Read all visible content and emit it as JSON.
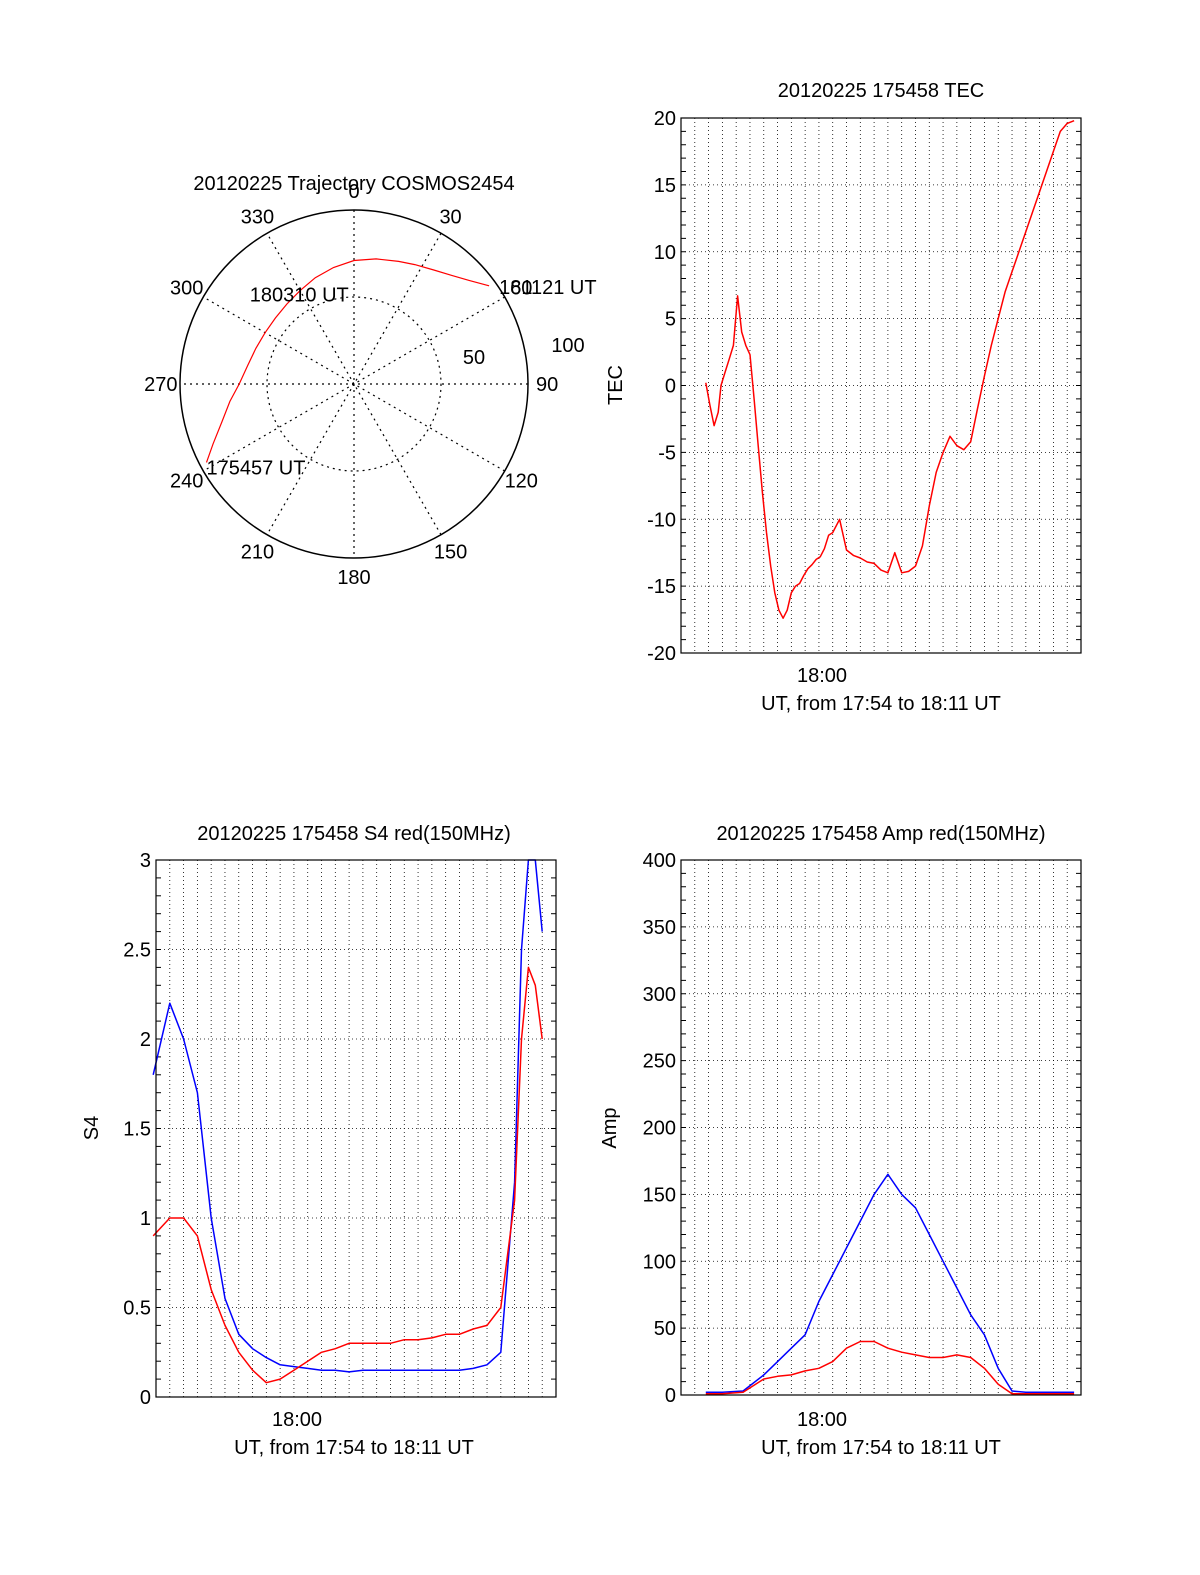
{
  "colors": {
    "red": "#ff0000",
    "blue": "#0000ff",
    "axis": "#000000"
  },
  "chart_data": [
    {
      "type": "polar",
      "title": "20120225 Trajectory COSMOS2454",
      "angle_labels": [
        "0",
        "30",
        "60",
        "90",
        "120",
        "150",
        "180",
        "210",
        "240",
        "270",
        "300",
        "330"
      ],
      "radius_labels": [
        "50",
        "100"
      ],
      "trajectory": {
        "azimuth_deg": [
          242,
          247,
          254,
          262,
          270,
          280,
          290,
          300,
          310,
          320,
          330,
          340,
          350,
          0,
          10,
          20,
          27,
          35,
          42,
          48,
          54
        ],
        "radius": [
          96,
          88,
          79,
          72,
          66,
          62,
          60,
          59,
          59,
          60,
          62,
          65,
          68,
          71,
          73,
          75,
          77,
          80,
          84,
          89,
          96
        ]
      },
      "annotations": [
        {
          "text": "181121 UT",
          "azimuth_deg": 54,
          "radius": 96
        },
        {
          "text": "180310 UT",
          "azimuth_deg": 330,
          "radius": 60
        },
        {
          "text": "175457 UT",
          "azimuth_deg": 242,
          "radius": 96
        }
      ]
    },
    {
      "type": "line",
      "title": "20120225 175458 TEC",
      "ylabel": "TEC",
      "xlabel": "UT, from 17:54 to 18:11 UT",
      "xtick_label": "18:00",
      "xlim_min": [
        17.9,
        18.19
      ],
      "ylim": [
        -20,
        20
      ],
      "yticks": [
        -20,
        -15,
        -10,
        -5,
        0,
        5,
        10,
        15,
        20
      ],
      "series": [
        {
          "color": "red",
          "x_min": [
            17.918,
            17.921,
            17.924,
            17.927,
            17.929,
            17.932,
            17.935,
            17.938,
            17.941,
            17.944,
            17.947,
            17.95,
            17.953,
            17.956,
            17.959,
            17.962,
            17.965,
            17.968,
            17.971,
            17.974,
            17.977,
            17.98,
            17.983,
            17.986,
            17.989,
            17.992,
            17.995,
            17.998,
            18.001,
            18.004,
            18.007,
            18.01,
            18.015,
            18.02,
            18.025,
            18.03,
            18.035,
            18.04,
            18.045,
            18.05,
            18.055,
            18.06,
            18.065,
            18.07,
            18.075,
            18.08,
            18.085,
            18.09,
            18.095,
            18.1,
            18.105,
            18.11,
            18.115,
            18.12,
            18.125,
            18.13,
            18.135,
            18.14,
            18.145,
            18.15,
            18.155,
            18.16,
            18.165,
            18.17,
            18.175,
            18.18,
            18.185
          ],
          "y": [
            0.2,
            -1.5,
            -3,
            -2,
            0,
            1,
            2,
            3,
            6.7,
            4,
            3,
            2.3,
            -1,
            -4.5,
            -8,
            -11,
            -13.5,
            -15.5,
            -16.8,
            -17.4,
            -16.8,
            -15.5,
            -15,
            -14.8,
            -14.2,
            -13.7,
            -13.4,
            -13,
            -12.8,
            -12.2,
            -11.2,
            -11,
            -10,
            -12.3,
            -12.7,
            -12.9,
            -13.2,
            -13.3,
            -13.8,
            -14,
            -12.5,
            -14,
            -13.9,
            -13.5,
            -12,
            -9,
            -6.5,
            -5,
            -3.8,
            -4.5,
            -4.8,
            -4.2,
            -1.7,
            0.7,
            3,
            5,
            7,
            8.5,
            10,
            11.5,
            13,
            14.5,
            16,
            17.5,
            19,
            19.6,
            19.8
          ]
        }
      ]
    },
    {
      "type": "line",
      "title": "20120225 175458 S4 red(150MHz)",
      "ylabel": "S4",
      "xlabel": "UT, from 17:54 to 18:11 UT",
      "xtick_label": "18:00",
      "xlim_min": [
        17.9,
        18.19
      ],
      "ylim": [
        0,
        3
      ],
      "yticks": [
        0,
        0.5,
        1,
        1.5,
        2,
        2.5,
        3
      ],
      "series": [
        {
          "color": "blue",
          "x_min": [
            17.898,
            17.91,
            17.92,
            17.93,
            17.94,
            17.95,
            17.96,
            17.97,
            17.98,
            17.99,
            18.0,
            18.01,
            18.02,
            18.03,
            18.04,
            18.05,
            18.06,
            18.07,
            18.08,
            18.09,
            18.1,
            18.11,
            18.12,
            18.13,
            18.14,
            18.15,
            18.16,
            18.165,
            18.17,
            18.175,
            18.18
          ],
          "y": [
            1.8,
            2.2,
            2.0,
            1.7,
            1.0,
            0.55,
            0.35,
            0.27,
            0.22,
            0.18,
            0.17,
            0.16,
            0.15,
            0.15,
            0.14,
            0.15,
            0.15,
            0.15,
            0.15,
            0.15,
            0.15,
            0.15,
            0.15,
            0.16,
            0.18,
            0.25,
            1.2,
            2.5,
            3.0,
            3.0,
            2.6
          ]
        },
        {
          "color": "red",
          "x_min": [
            17.898,
            17.91,
            17.92,
            17.93,
            17.94,
            17.95,
            17.96,
            17.97,
            17.98,
            17.99,
            18.0,
            18.01,
            18.02,
            18.03,
            18.04,
            18.05,
            18.06,
            18.07,
            18.08,
            18.09,
            18.1,
            18.11,
            18.12,
            18.13,
            18.14,
            18.15,
            18.16,
            18.165,
            18.17,
            18.175,
            18.18
          ],
          "y": [
            0.9,
            1.0,
            1.0,
            0.9,
            0.6,
            0.4,
            0.25,
            0.15,
            0.08,
            0.1,
            0.15,
            0.2,
            0.25,
            0.27,
            0.3,
            0.3,
            0.3,
            0.3,
            0.32,
            0.32,
            0.33,
            0.35,
            0.35,
            0.38,
            0.4,
            0.5,
            1.1,
            2.0,
            2.4,
            2.3,
            2.0
          ]
        }
      ]
    },
    {
      "type": "line",
      "title": "20120225 175458 Amp red(150MHz)",
      "ylabel": "Amp",
      "xlabel": "UT, from 17:54 to 18:11 UT",
      "xtick_label": "18:00",
      "xlim_min": [
        17.9,
        18.19
      ],
      "ylim": [
        0,
        400
      ],
      "yticks": [
        0,
        50,
        100,
        150,
        200,
        250,
        300,
        350,
        400
      ],
      "series": [
        {
          "color": "blue",
          "x_min": [
            17.918,
            17.93,
            17.945,
            17.96,
            17.97,
            17.98,
            17.99,
            18.0,
            18.01,
            18.02,
            18.03,
            18.04,
            18.05,
            18.06,
            18.07,
            18.08,
            18.09,
            18.1,
            18.11,
            18.12,
            18.13,
            18.14,
            18.15,
            18.16,
            18.17,
            18.185
          ],
          "y": [
            2,
            2,
            3,
            15,
            25,
            35,
            45,
            70,
            90,
            110,
            130,
            150,
            165,
            150,
            140,
            120,
            100,
            80,
            60,
            45,
            20,
            3,
            2,
            2,
            2,
            2
          ]
        },
        {
          "color": "red",
          "x_min": [
            17.918,
            17.93,
            17.945,
            17.96,
            17.97,
            17.98,
            17.99,
            18.0,
            18.01,
            18.02,
            18.03,
            18.04,
            18.05,
            18.06,
            18.07,
            18.08,
            18.09,
            18.1,
            18.11,
            18.12,
            18.13,
            18.14,
            18.15,
            18.16,
            18.17,
            18.185
          ],
          "y": [
            1,
            1,
            2,
            12,
            14,
            15,
            18,
            20,
            25,
            35,
            40,
            40,
            35,
            32,
            30,
            28,
            28,
            30,
            28,
            20,
            8,
            1,
            1,
            1,
            1,
            1
          ]
        }
      ]
    }
  ]
}
